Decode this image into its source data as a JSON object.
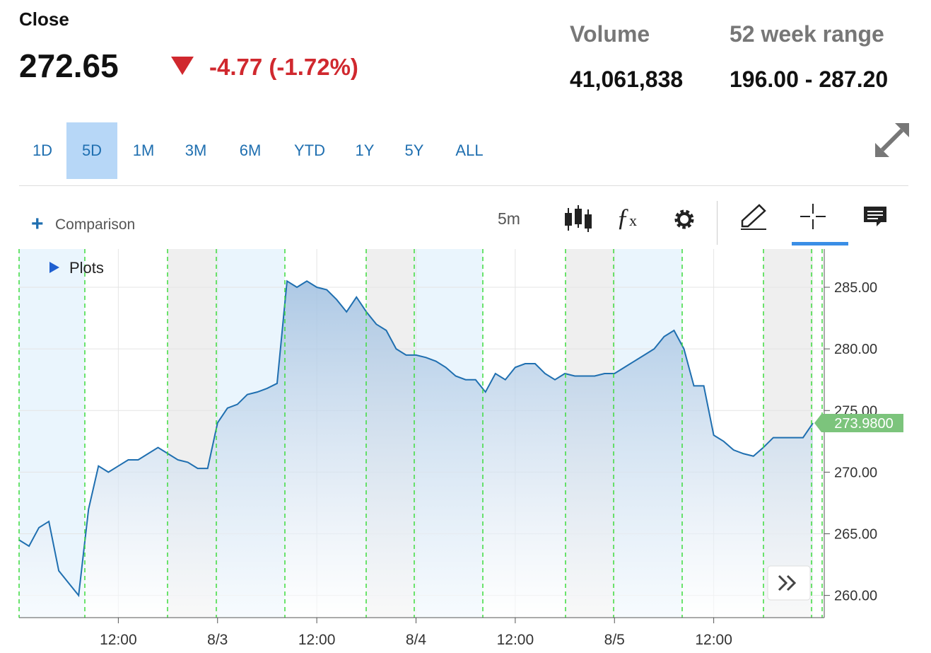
{
  "header": {
    "close_label": "Close",
    "close_price": "272.65",
    "change": "-4.77 (-1.72%)",
    "volume_label": "Volume",
    "volume": "41,061,838",
    "range_label": "52 week range",
    "range": "196.00 - 287.20"
  },
  "ranges": [
    "1D",
    "5D",
    "1M",
    "3M",
    "6M",
    "YTD",
    "1Y",
    "5Y",
    "ALL"
  ],
  "selected_range": "5D",
  "toolbar": {
    "comparison": "Comparison",
    "interval": "5m",
    "plots": "Plots"
  },
  "chart_data": {
    "type": "area",
    "color": "#1f6fb0",
    "categories": [
      null,
      null,
      null,
      null,
      null,
      null,
      null,
      null,
      null,
      null,
      "12:00",
      null,
      null,
      null,
      null,
      null,
      null,
      null,
      null,
      null,
      "8/3",
      null,
      null,
      null,
      null,
      null,
      null,
      null,
      null,
      null,
      "12:00",
      null,
      null,
      null,
      null,
      null,
      null,
      null,
      null,
      null,
      "8/4",
      null,
      null,
      null,
      null,
      null,
      null,
      null,
      null,
      null,
      "12:00",
      null,
      null,
      null,
      null,
      null,
      null,
      null,
      null,
      null,
      "8/5",
      null,
      null,
      null,
      null,
      null,
      null,
      null,
      null,
      null,
      "12:00",
      null,
      null,
      null,
      null,
      null,
      null,
      null,
      null,
      null,
      null
    ],
    "values": [
      264.5,
      264,
      265.5,
      266,
      262,
      261,
      260,
      267,
      270.5,
      270,
      270.5,
      271,
      271,
      271.5,
      272,
      271.5,
      271,
      270.8,
      270.3,
      270.3,
      274,
      275.2,
      275.5,
      276.3,
      276.5,
      276.8,
      277.2,
      285.5,
      285,
      285.5,
      285,
      284.8,
      284,
      283,
      284.2,
      283,
      282,
      281.5,
      280,
      279.5,
      279.5,
      279.3,
      279,
      278.5,
      277.8,
      277.5,
      277.5,
      276.5,
      278,
      277.5,
      278.5,
      278.8,
      278.8,
      278,
      277.5,
      278,
      277.8,
      277.8,
      277.8,
      278,
      278,
      278.5,
      279,
      279.5,
      280,
      281,
      281.5,
      280,
      277,
      277,
      273,
      272.5,
      271.8,
      271.5,
      271.3,
      272,
      272.8,
      272.8,
      272.8,
      272.8,
      273.98
    ],
    "value_labels": [
      null,
      null,
      null,
      null,
      null,
      null,
      null,
      null,
      null,
      null,
      null,
      null,
      null,
      null,
      null,
      null,
      null,
      null,
      null,
      null,
      null,
      null,
      null,
      null,
      null,
      null,
      null,
      null,
      null,
      null,
      null,
      null,
      null,
      null,
      null,
      null,
      null,
      null,
      null,
      null,
      null,
      null,
      null,
      null,
      null,
      null,
      null,
      null,
      null,
      null,
      null,
      null,
      null,
      null,
      null,
      null,
      null,
      null,
      null,
      null,
      null,
      null,
      null,
      null,
      null,
      null,
      null,
      null,
      null,
      null,
      null,
      null,
      null,
      null,
      null,
      null,
      null,
      null,
      null,
      null,
      "273.9800"
    ],
    "ylim": [
      258.2,
      288.1
    ],
    "yticks": [
      {
        "value": 260,
        "label": "260.00"
      },
      {
        "value": 265,
        "label": "265.00"
      },
      {
        "value": 270,
        "label": "270.00"
      },
      {
        "value": 275,
        "label": "275.00"
      },
      {
        "value": 280,
        "label": "280.00"
      },
      {
        "value": 285,
        "label": "285.00"
      }
    ],
    "grid": true
  }
}
